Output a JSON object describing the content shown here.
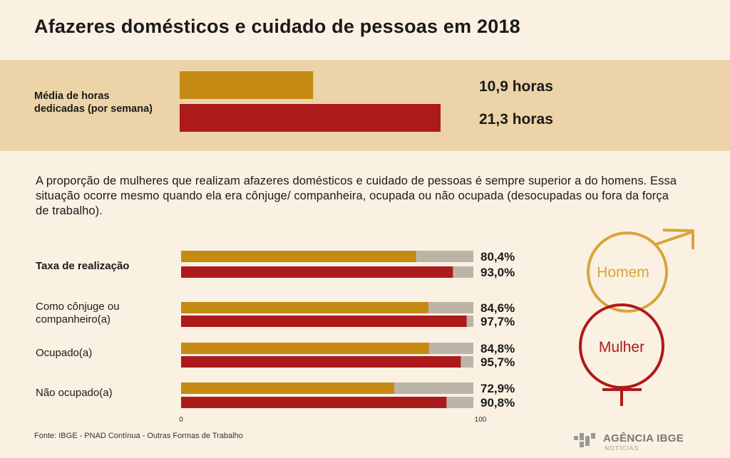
{
  "title": "Afazeres domésticos e cuidado de pessoas em 2018",
  "hours": {
    "label": "Média de horas dedicadas (por semana)",
    "items": [
      {
        "value": 10.9,
        "label": "10,9 horas",
        "color": "#c48a14"
      },
      {
        "value": 21.3,
        "label": "21,3 horas",
        "color": "#ad1a1c"
      }
    ]
  },
  "description": "A proporção de mulheres que realizam afazeres domésticos e cuidado de pessoas é sempre superior a do homens. Essa situação ocorre mesmo quando ela era cônjuge/ companheira, ocupada ou não ocupada (desocupadas ou fora da força de trabalho).",
  "chart_data": {
    "type": "bar",
    "orientation": "horizontal",
    "categories": [
      "Taxa de realização",
      "Como cônjuge ou companheiro(a)",
      "Ocupado(a)",
      "Não ocupado(a)"
    ],
    "series": [
      {
        "name": "Homem",
        "color": "#c48a14",
        "values": [
          80.4,
          84.6,
          84.8,
          72.9
        ],
        "labels": [
          "80,4%",
          "84,6%",
          "84,8%",
          "72,9%"
        ]
      },
      {
        "name": "Mulher",
        "color": "#ad1a1c",
        "values": [
          93.0,
          97.7,
          95.7,
          90.8
        ],
        "labels": [
          "93,0%",
          "97,7%",
          "95,7%",
          "90,8%"
        ]
      }
    ],
    "xlim": [
      0,
      100
    ],
    "xticks": [
      "0",
      "100"
    ],
    "remainder_color": "#bdb4a8"
  },
  "legend": {
    "homem": {
      "label": "Homem",
      "color": "#d9a43a"
    },
    "mulher": {
      "label": "Mulher",
      "color": "#ad1a1c"
    }
  },
  "source": "Fonte: IBGE - PNAD Contínua - Outras Formas de Trabalho",
  "logo": {
    "main": "AGÊNCIA IBGE",
    "sub": "NOTÍCIAS"
  }
}
